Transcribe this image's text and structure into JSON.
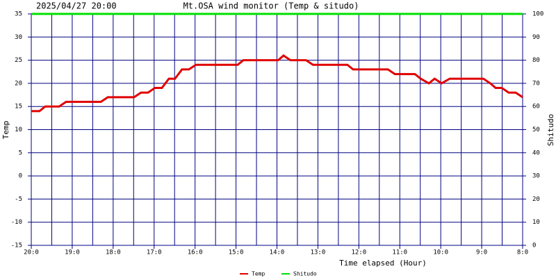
{
  "chart_data": {
    "type": "line",
    "title": "Mt.OSA wind monitor (Temp & situdo)",
    "timestamp": "2025/04/27 20:00",
    "x_label": "Time elapsed (Hour)",
    "y_label": "Temp",
    "y2_label": "Shitudo",
    "xlim": [
      0,
      12
    ],
    "xticks": [
      {
        "value": 0,
        "label": "20:0"
      },
      {
        "value": 1,
        "label": "19:0"
      },
      {
        "value": 2,
        "label": "18:0"
      },
      {
        "value": 3,
        "label": "17:0"
      },
      {
        "value": 4,
        "label": "16:0"
      },
      {
        "value": 5,
        "label": "15:0"
      },
      {
        "value": 6,
        "label": "14:0"
      },
      {
        "value": 7,
        "label": "13:0"
      },
      {
        "value": 8,
        "label": "12:0"
      },
      {
        "value": 9,
        "label": "11:0"
      },
      {
        "value": 10,
        "label": "10:0"
      },
      {
        "value": 11,
        "label": "9:0"
      },
      {
        "value": 12,
        "label": "8:0"
      }
    ],
    "x_minor_grid": [
      0.5,
      1.5,
      2.5,
      3.5,
      4.5,
      5.5,
      6.5,
      7.5,
      8.5,
      9.5,
      10.5,
      11.5
    ],
    "ylim": [
      -15,
      35
    ],
    "yticks": [
      -15,
      -10,
      -5,
      0,
      5,
      10,
      15,
      20,
      25,
      30,
      35
    ],
    "y2lim": [
      0,
      100
    ],
    "y2ticks": [
      0,
      10,
      20,
      30,
      40,
      50,
      60,
      70,
      80,
      90,
      100
    ],
    "grid": true,
    "grid_color": "#000080",
    "series": [
      {
        "name": "Temp",
        "color": "#e00000",
        "x": [
          0,
          0.2,
          0.34,
          0.68,
          0.85,
          1.7,
          1.87,
          2.51,
          2.68,
          2.85,
          3.02,
          3.19,
          3.36,
          3.51,
          3.68,
          3.85,
          4.02,
          5.04,
          5.18,
          6.03,
          6.16,
          6.33,
          6.71,
          6.88,
          7.72,
          7.86,
          8.71,
          8.88,
          9.37,
          9.51,
          9.71,
          9.85,
          10.02,
          10.22,
          11.04,
          11.21,
          11.34,
          11.49,
          11.66,
          11.83,
          12
        ],
        "values": [
          14,
          14,
          15,
          15,
          16,
          16,
          17,
          17,
          18,
          18,
          19,
          19,
          21,
          21,
          23,
          23,
          24,
          24,
          25,
          25,
          26,
          25,
          25,
          24,
          24,
          23,
          23,
          22,
          22,
          21,
          20,
          21,
          20,
          21,
          21,
          20,
          19,
          19,
          18,
          18,
          17
        ]
      },
      {
        "name": "Shitudo",
        "color": "#00e000",
        "axis": "y2",
        "x": [
          0,
          12
        ],
        "values": [
          100,
          100
        ]
      }
    ]
  }
}
